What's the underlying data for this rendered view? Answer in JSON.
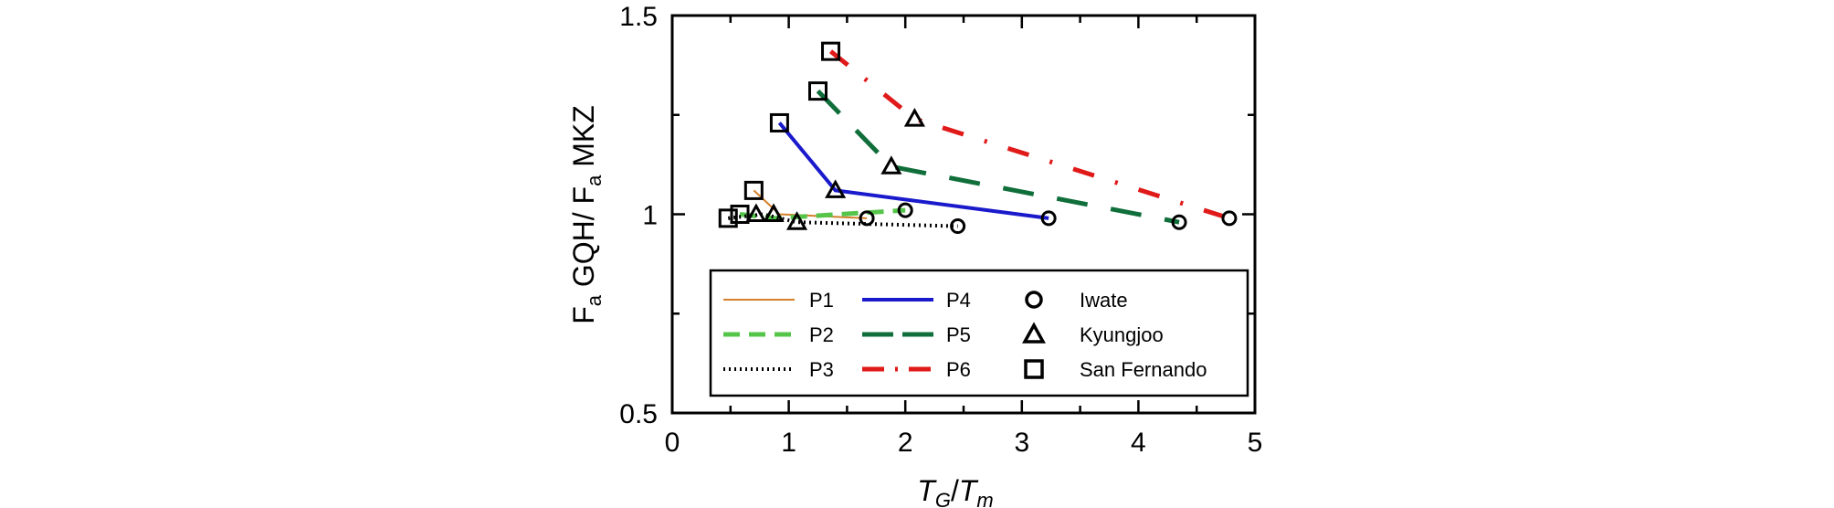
{
  "chart_data": {
    "type": "line",
    "xlim": [
      0,
      5
    ],
    "ylim": [
      0.5,
      1.5
    ],
    "xticks": [
      "0",
      "1",
      "2",
      "3",
      "4",
      "5"
    ],
    "yticks": [
      "0.5",
      "1",
      "1.5"
    ],
    "xlabel": {
      "main1": "T",
      "sub1": "G",
      "sep": "/",
      "main2": "T",
      "sub2": "m"
    },
    "ylabel": {
      "part1": "F",
      "sub1": "a",
      "part2": " GQH/ F",
      "sub2": "a",
      "part3": " MKZ"
    },
    "legend_placement": "bottom-center",
    "series": [
      {
        "name": "P1",
        "color": "#d4802b",
        "x": [
          0.7,
          0.92,
          1.67
        ],
        "y": [
          1.06,
          1.0,
          0.99
        ]
      },
      {
        "name": "P2",
        "color": "#55c54a",
        "x": [
          0.58,
          0.88,
          2.0
        ],
        "y": [
          1.0,
          0.99,
          1.01
        ]
      },
      {
        "name": "P3",
        "color": "#000000",
        "x": [
          0.48,
          0.78,
          1.07,
          2.45
        ],
        "y": [
          0.99,
          1.0,
          0.98,
          0.97
        ]
      },
      {
        "name": "P4",
        "color": "#1a1acc",
        "x": [
          0.92,
          1.4,
          3.23
        ],
        "y": [
          1.23,
          1.06,
          0.99
        ]
      },
      {
        "name": "P5",
        "color": "#0f6e3a",
        "x": [
          1.25,
          1.88,
          4.35
        ],
        "y": [
          1.31,
          1.12,
          0.98
        ]
      },
      {
        "name": "P6",
        "color": "#e01919",
        "x": [
          1.36,
          2.08,
          4.78
        ],
        "y": [
          1.41,
          1.24,
          0.99
        ]
      }
    ],
    "markers": [
      {
        "name": "Iwate",
        "shape": "circle",
        "points": [
          [
            1.67,
            0.99
          ],
          [
            2.0,
            1.01
          ],
          [
            2.45,
            0.97
          ],
          [
            3.23,
            0.99
          ],
          [
            4.35,
            0.98
          ],
          [
            4.78,
            0.99
          ]
        ]
      },
      {
        "name": "Kyungjoo",
        "shape": "triangle",
        "points": [
          [
            0.72,
            1.0
          ],
          [
            0.87,
            1.0
          ],
          [
            1.07,
            0.98
          ],
          [
            1.4,
            1.06
          ],
          [
            1.88,
            1.12
          ],
          [
            2.08,
            1.24
          ]
        ]
      },
      {
        "name": "San Fernando",
        "shape": "square",
        "points": [
          [
            0.48,
            0.99
          ],
          [
            0.58,
            1.0
          ],
          [
            0.7,
            1.06
          ],
          [
            0.92,
            1.23
          ],
          [
            1.25,
            1.31
          ],
          [
            1.36,
            1.41
          ]
        ]
      }
    ]
  }
}
